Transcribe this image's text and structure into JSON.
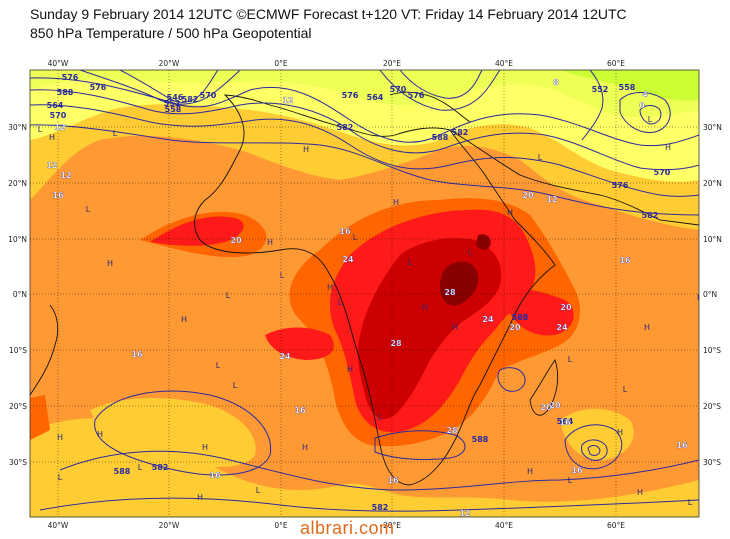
{
  "title_line1": "Sunday 9 February 2014 12UTC ©ECMWF Forecast t+120 VT: Friday 14 February 2014 12UTC",
  "title_line2": "850 hPa Temperature / 500 hPa Geopotential",
  "watermark": "albrari.com",
  "colors": {
    "band_lt4": "#ccff33",
    "band_4_8": "#eeff55",
    "band_8_12": "#ffff66",
    "band_12_16": "#ffcc33",
    "band_16_20": "#ff9933",
    "band_20_24": "#ff6600",
    "band_24_28": "#ff1a1a",
    "band_28_32": "#cc0000",
    "band_gt32": "#880000",
    "contour": "#2a2aa0",
    "coast": "#111111"
  },
  "longitude_labels": [
    "40°W",
    "20°W",
    "0°E",
    "20°E",
    "40°E",
    "60°E"
  ],
  "latitude_labels_left": [
    "30°N",
    "20°N",
    "10°N",
    "0°N",
    "10°S",
    "20°S",
    "30°S"
  ],
  "latitude_labels_right": [
    "30°N",
    "20°N",
    "10°N",
    "0°N",
    "10°S",
    "20°S",
    "30°S"
  ],
  "geopotential_labels": [
    "576",
    "576",
    "588",
    "546",
    "552",
    "558",
    "564",
    "570",
    "576",
    "582",
    "564",
    "570",
    "576",
    "582",
    "588",
    "552",
    "558",
    "570",
    "576",
    "582",
    "588",
    "582",
    "582",
    "588",
    "588",
    "564",
    "582",
    "570"
  ],
  "temperature_labels": [
    "12",
    "12",
    "12",
    "16",
    "12",
    "8",
    "4",
    "0",
    "16",
    "20",
    "12",
    "20",
    "16",
    "24",
    "28",
    "28",
    "24",
    "20",
    "20",
    "16",
    "28",
    "24",
    "16",
    "20",
    "24",
    "16",
    "16",
    "16",
    "16",
    "20",
    "16",
    "12"
  ],
  "pressure_marks": [
    "L",
    "H",
    "L",
    "H",
    "L",
    "H",
    "L",
    "H",
    "L",
    "H",
    "H",
    "L",
    "H",
    "L",
    "H",
    "L",
    "L",
    "H",
    "L",
    "H",
    "L",
    "H",
    "L",
    "H",
    "L",
    "H",
    "L",
    "H",
    "H",
    "L",
    "H",
    "L",
    "H",
    "L",
    "H",
    "L",
    "H",
    "L",
    "H",
    "L",
    "H",
    "L",
    "H"
  ]
}
